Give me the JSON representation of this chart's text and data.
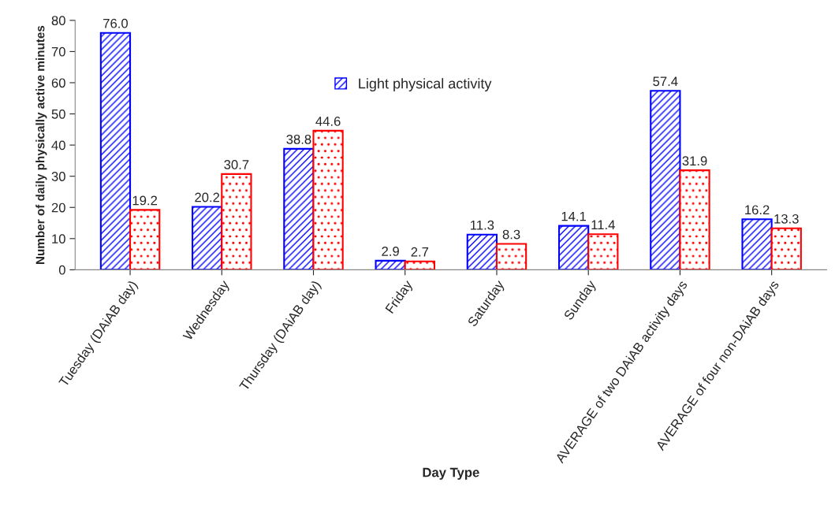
{
  "chart_data": {
    "type": "bar",
    "xlabel": "Day Type",
    "ylabel": "Number of daily physically active minutes",
    "categories": [
      "Tuesday (DAiAB day)",
      "Wednesday",
      "Thursday (DAiAB day)",
      "Friday",
      "Saturday",
      "Sunday",
      "AVERAGE of two DAiAB activity days",
      "AVERAGE of four non-DAiAB days"
    ],
    "series": [
      {
        "name": "Light physical activity",
        "color": "#0000ff",
        "values": [
          76.0,
          20.2,
          38.8,
          2.9,
          11.3,
          14.1,
          57.4,
          16.2
        ],
        "value_labels": [
          "76.0",
          "20.2",
          "38.8",
          "2.9",
          "11.3",
          "14.1",
          "57.4",
          "16.2"
        ]
      },
      {
        "color": "#ff0000",
        "values": [
          19.2,
          30.7,
          44.6,
          2.7,
          8.3,
          11.4,
          31.9,
          13.3
        ],
        "value_labels": [
          "19.2",
          "30.7",
          "44.6",
          "2.7",
          "8.3",
          "11.4",
          "31.9",
          "13.3"
        ]
      }
    ],
    "ylim": [
      0,
      80
    ],
    "yticks": [
      0,
      10,
      20,
      30,
      40,
      50,
      60,
      70,
      80
    ],
    "grid": false,
    "legend": "top"
  }
}
